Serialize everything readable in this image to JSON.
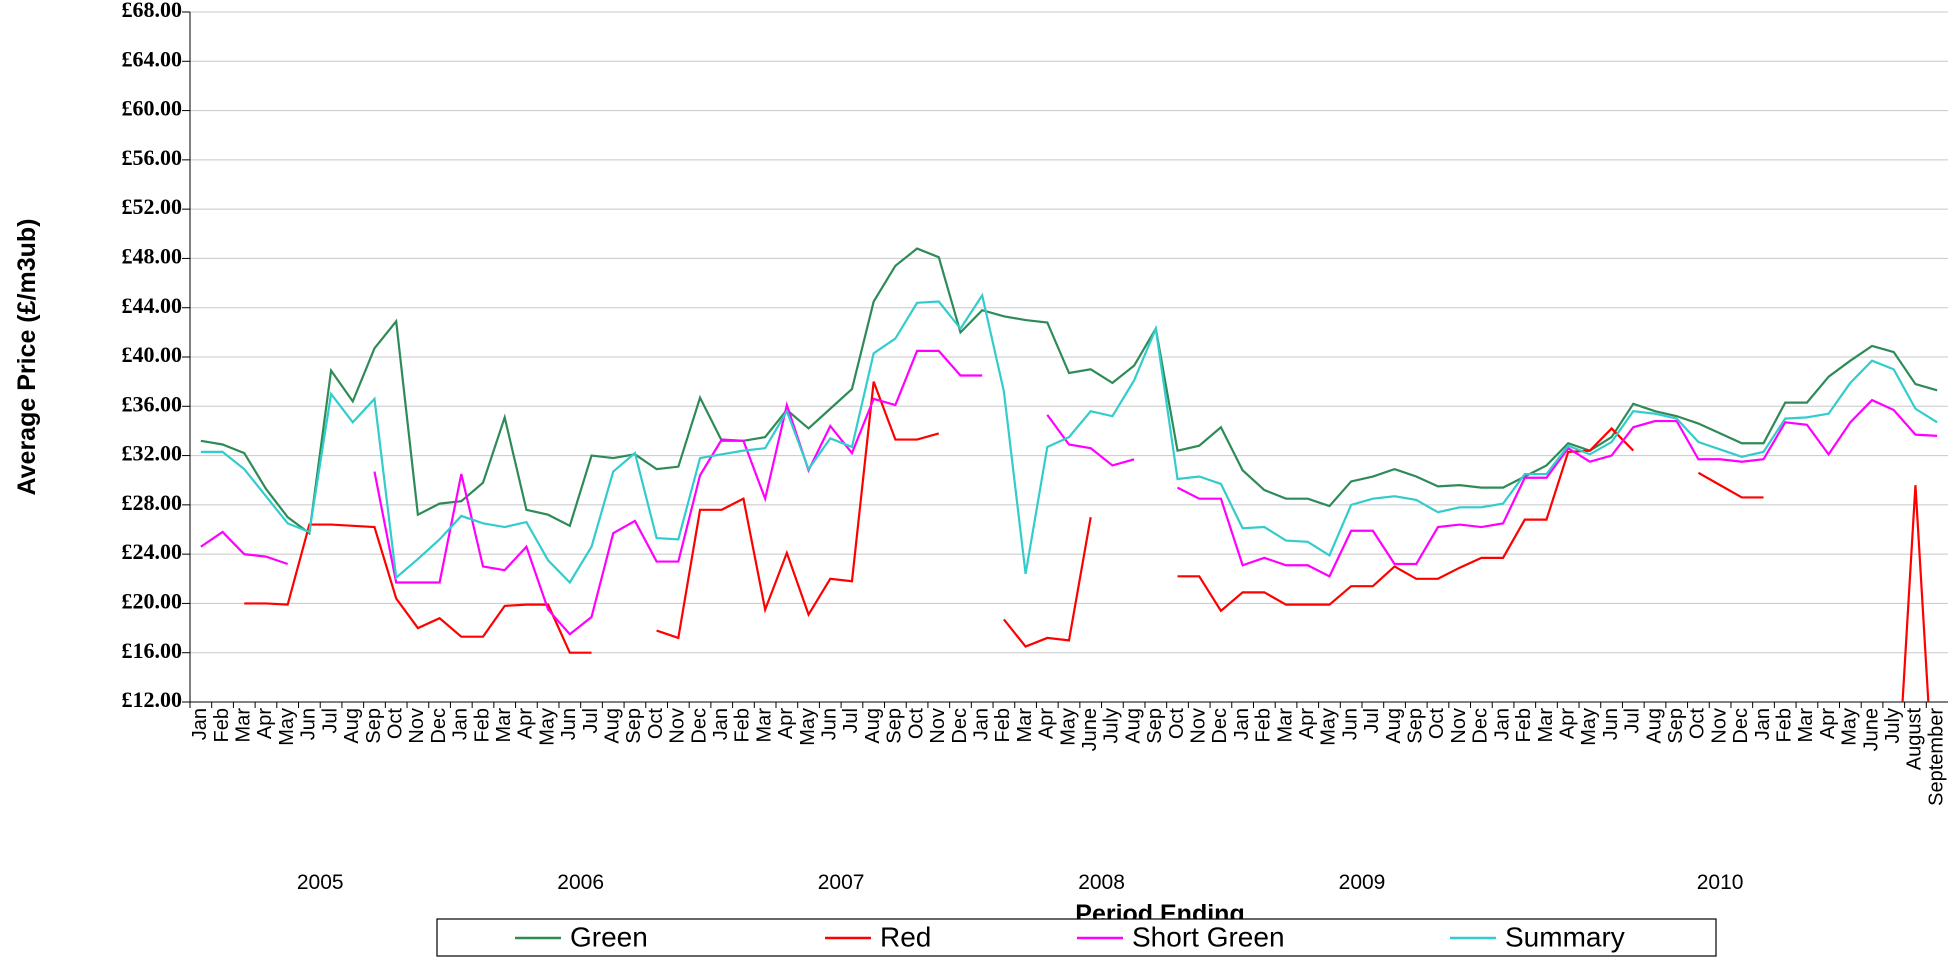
{
  "chart_data": {
    "type": "line",
    "x_label": "Period Ending",
    "y_label": "Average Price (£/m3ub)",
    "category_groups": [
      {
        "label": "2005",
        "categories": [
          "Jan",
          "Feb",
          "Mar",
          "Apr",
          "May",
          "Jun",
          "Jul",
          "Aug",
          "Sep",
          "Oct",
          "Nov",
          "Dec"
        ]
      },
      {
        "label": "2006",
        "categories": [
          "Jan",
          "Feb",
          "Mar",
          "Apr",
          "May",
          "Jun",
          "Jul",
          "Aug",
          "Sep",
          "Oct",
          "Nov",
          "Dec"
        ]
      },
      {
        "label": "2007",
        "categories": [
          "Jan",
          "Feb",
          "Mar",
          "Apr",
          "May",
          "Jun",
          "Jul",
          "Aug",
          "Sep",
          "Oct",
          "Nov",
          "Dec"
        ]
      },
      {
        "label": "2008",
        "categories": [
          "Jan",
          "Feb",
          "Mar",
          "Apr",
          "May",
          "June",
          "July",
          "Aug",
          "Sep",
          "Oct",
          "Nov",
          "Dec"
        ]
      },
      {
        "label": "2009",
        "categories": [
          "Jan",
          "Feb",
          "Mar",
          "Apr",
          "May",
          "Jun",
          "Jul",
          "Aug",
          "Sep",
          "Oct",
          "Nov",
          "Dec"
        ]
      },
      {
        "label": "2010",
        "categories": [
          "Jan",
          "Feb",
          "Mar",
          "Apr",
          "May",
          "Jun",
          "Jul",
          "Aug",
          "Sep",
          "Oct",
          "Nov",
          "Dec",
          "Jan",
          "Feb",
          "Mar",
          "Apr",
          "May",
          "June",
          "July",
          "August",
          "September"
        ]
      }
    ],
    "series": [
      {
        "name": "Green",
        "color": "#2e8b57",
        "values": [
          33.2,
          32.9,
          32.2,
          29.3,
          27.0,
          25.7,
          38.9,
          36.4,
          40.7,
          42.9,
          27.2,
          28.1,
          28.3,
          29.8,
          35.1,
          27.6,
          27.2,
          26.3,
          32.0,
          31.8,
          32.1,
          30.9,
          31.1,
          36.7,
          33.2,
          33.2,
          33.5,
          35.7,
          34.2,
          35.8,
          37.4,
          44.5,
          47.4,
          48.8,
          48.1,
          42.0,
          43.8,
          43.3,
          43.0,
          42.8,
          38.7,
          39.0,
          37.9,
          39.3,
          42.3,
          32.4,
          32.8,
          34.3,
          30.8,
          29.2,
          28.5,
          28.5,
          27.9,
          29.9,
          30.3,
          30.9,
          30.3,
          29.5,
          29.6,
          29.4,
          29.4,
          30.3,
          31.2,
          33.0,
          32.4,
          33.5,
          36.2,
          35.6,
          35.2,
          34.6,
          33.8,
          33.0,
          33.0,
          36.3,
          36.3,
          38.4,
          39.7,
          40.9,
          40.4,
          37.8,
          37.3
        ]
      },
      {
        "name": "Red",
        "color": "#ff0000",
        "values": [
          null,
          null,
          20.0,
          20.0,
          19.9,
          26.4,
          26.4,
          26.3,
          26.2,
          20.4,
          18.0,
          18.8,
          17.3,
          17.3,
          19.8,
          19.9,
          19.9,
          16.0,
          16.0,
          null,
          null,
          17.8,
          17.2,
          27.6,
          27.6,
          28.5,
          19.5,
          24.1,
          19.1,
          22.0,
          21.8,
          38.0,
          33.3,
          33.3,
          33.8,
          null,
          null,
          18.7,
          16.5,
          17.2,
          17.0,
          27.0,
          null,
          null,
          null,
          22.2,
          22.2,
          19.4,
          20.9,
          20.9,
          19.9,
          19.9,
          19.9,
          21.4,
          21.4,
          23.0,
          22.0,
          22.0,
          22.9,
          23.7,
          23.7,
          26.8,
          26.8,
          32.3,
          32.4,
          34.2,
          32.4,
          null,
          null,
          30.6,
          29.6,
          28.6,
          28.6,
          null,
          null,
          null,
          null,
          null,
          0,
          29.6,
          0
        ]
      },
      {
        "name": "Short Green",
        "color": "#ff00ff",
        "values": [
          24.6,
          25.8,
          24.0,
          23.8,
          23.2,
          null,
          null,
          null,
          30.7,
          21.7,
          21.7,
          21.7,
          30.5,
          23.0,
          22.7,
          24.6,
          19.5,
          17.5,
          18.9,
          25.7,
          26.7,
          23.4,
          23.4,
          30.4,
          33.3,
          33.2,
          28.5,
          36.1,
          30.8,
          34.4,
          32.2,
          36.6,
          36.1,
          40.5,
          40.5,
          38.5,
          38.5,
          null,
          null,
          35.3,
          32.9,
          32.6,
          31.2,
          31.7,
          null,
          29.4,
          28.5,
          28.5,
          23.1,
          23.7,
          23.1,
          23.1,
          22.2,
          25.9,
          25.9,
          23.2,
          23.2,
          26.2,
          26.4,
          26.2,
          26.5,
          30.2,
          30.2,
          32.6,
          31.5,
          32.0,
          34.3,
          34.8,
          34.8,
          31.7,
          31.7,
          31.5,
          31.7,
          34.7,
          34.5,
          32.1,
          34.7,
          36.5,
          35.7,
          33.7,
          33.6
        ]
      },
      {
        "name": "Summary",
        "color": "#33cccc",
        "values": [
          32.3,
          32.3,
          30.9,
          28.7,
          26.5,
          25.8,
          37.0,
          34.7,
          36.6,
          22.1,
          23.6,
          25.2,
          27.1,
          26.5,
          26.2,
          26.6,
          23.5,
          21.7,
          24.6,
          30.7,
          32.2,
          25.3,
          25.2,
          31.8,
          32.1,
          32.4,
          32.6,
          35.6,
          30.9,
          33.4,
          32.7,
          40.3,
          41.5,
          44.4,
          44.5,
          42.3,
          45.0,
          37.2,
          22.4,
          32.7,
          33.5,
          35.6,
          35.2,
          38.1,
          42.3,
          30.1,
          30.3,
          29.7,
          26.1,
          26.2,
          25.1,
          25.0,
          23.9,
          28.0,
          28.5,
          28.7,
          28.4,
          27.4,
          27.8,
          27.8,
          28.1,
          30.5,
          30.5,
          32.8,
          32.1,
          33.1,
          35.6,
          35.4,
          35.0,
          33.1,
          32.5,
          31.9,
          32.3,
          35.0,
          35.1,
          35.4,
          37.9,
          39.7,
          39.0,
          35.8,
          34.7
        ]
      }
    ],
    "ylim": [
      12,
      68
    ],
    "yticks": [
      {
        "value": 12,
        "label": "£12.00"
      },
      {
        "value": 16,
        "label": "£16.00"
      },
      {
        "value": 20,
        "label": "£20.00"
      },
      {
        "value": 24,
        "label": "£24.00"
      },
      {
        "value": 28,
        "label": "£28.00"
      },
      {
        "value": 32,
        "label": "£32.00"
      },
      {
        "value": 36,
        "label": "£36.00"
      },
      {
        "value": 40,
        "label": "£40.00"
      },
      {
        "value": 44,
        "label": "£44.00"
      },
      {
        "value": 48,
        "label": "£48.00"
      },
      {
        "value": 52,
        "label": "£52.00"
      },
      {
        "value": 56,
        "label": "£56.00"
      },
      {
        "value": 60,
        "label": "£60.00"
      },
      {
        "value": 64,
        "label": "£64.00"
      },
      {
        "value": 68,
        "label": "£68.00"
      }
    ],
    "grid": true,
    "legend": "bottom"
  }
}
